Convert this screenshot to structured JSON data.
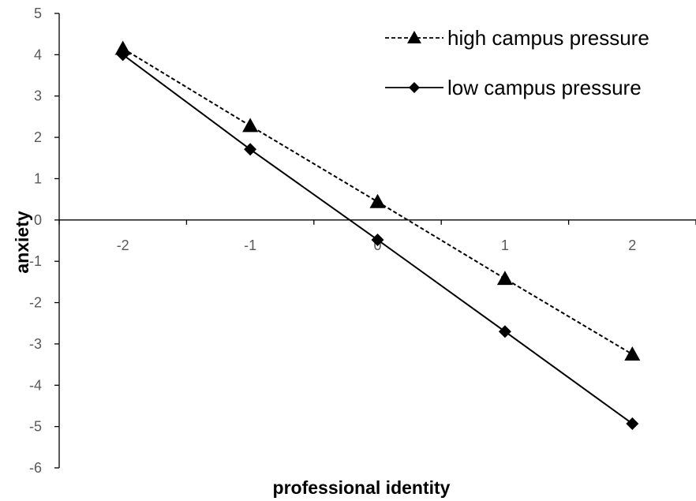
{
  "chart_data": {
    "type": "line",
    "title": "",
    "xlabel": "professional identity",
    "ylabel": "anxiety",
    "x": [
      -2,
      -1,
      0,
      1,
      2
    ],
    "x_tick_labels": [
      "-2",
      "-1",
      "0",
      "1",
      "2"
    ],
    "y_tick_labels": [
      "5",
      "4",
      "3",
      "2",
      "1",
      "0",
      "-1",
      "-2",
      "-3",
      "-4",
      "-5",
      "-6"
    ],
    "xlim": [
      -2.5,
      2.5
    ],
    "ylim": [
      -6,
      5
    ],
    "grid": false,
    "legend_position": "top-right",
    "series": [
      {
        "name": "high campus pressure",
        "values": [
          4.15,
          2.28,
          0.44,
          -1.42,
          -3.25
        ],
        "line_style": "dashed",
        "marker": "triangle",
        "color": "#000000"
      },
      {
        "name": "low campus pressure",
        "values": [
          4.0,
          1.71,
          -0.48,
          -2.7,
          -4.93
        ],
        "line_style": "solid",
        "marker": "diamond",
        "color": "#000000"
      }
    ]
  }
}
